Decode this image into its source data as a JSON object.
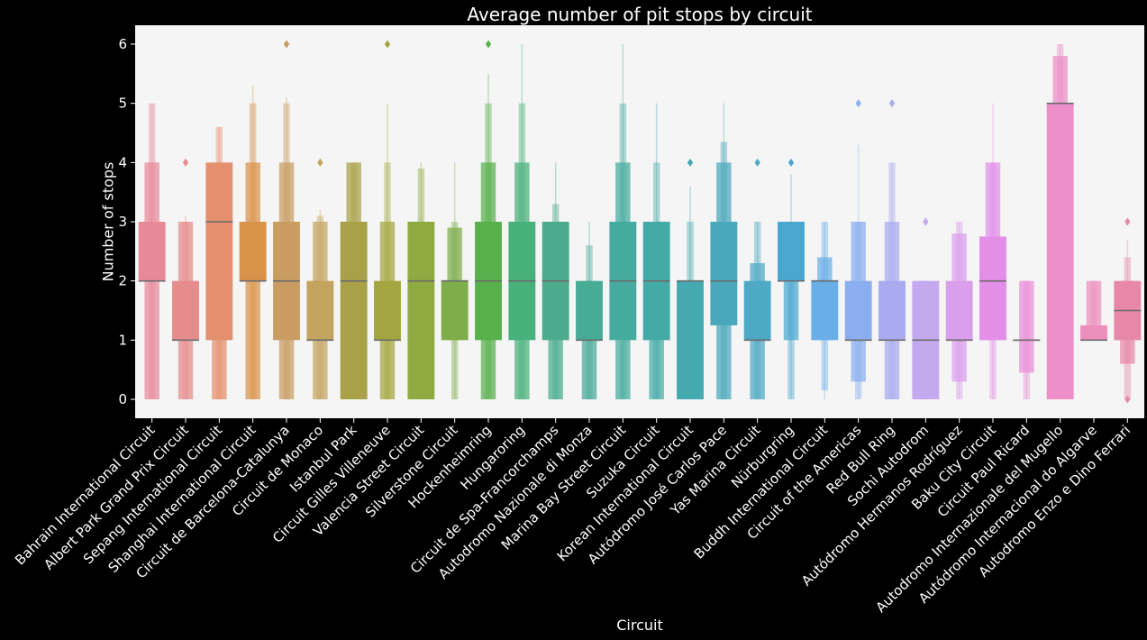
{
  "chart_data": {
    "type": "boxen",
    "title": "Average number of pit stops by circuit",
    "xlabel": "Circuit",
    "ylabel": "Number of stops",
    "ylim": [
      -0.32,
      6.32
    ],
    "yticks": [
      0,
      1,
      2,
      3,
      4,
      5,
      6
    ],
    "grid": false,
    "legend": "none",
    "background": "#f5f5f5",
    "figure_background": "#000000",
    "text_color": "#ffffff",
    "categories": [
      "Bahrain International Circuit",
      "Albert Park Grand Prix Circuit",
      "Sepang International Circuit",
      "Shanghai International Circuit",
      "Circuit de Barcelona-Catalunya",
      "Circuit de Monaco",
      "Istanbul Park",
      "Circuit Gilles Villeneuve",
      "Valencia Street Circuit",
      "Silverstone Circuit",
      "Hockenheimring",
      "Hungaroring",
      "Circuit de Spa-Francorchamps",
      "Autodromo Nazionale di Monza",
      "Marina Bay Street Circuit",
      "Suzuka Circuit",
      "Korean International Circuit",
      "Autódromo José Carlos Pace",
      "Yas Marina Circuit",
      "Nürburgring",
      "Buddh International Circuit",
      "Circuit of the Americas",
      "Red Bull Ring",
      "Sochi Autodrom",
      "Autódromo Hermanos Rodríguez",
      "Baku City Circuit",
      "Circuit Paul Ricard",
      "Autodromo Internazionale del Mugello",
      "Autódromo Internacional do Algarve",
      "Autodromo Enzo e Dino Ferrari"
    ],
    "colors": [
      "#e8899a",
      "#e68c8c",
      "#e4906e",
      "#d9924a",
      "#c99d62",
      "#c3a45f",
      "#a9a148",
      "#a3a63e",
      "#8faa41",
      "#7ead49",
      "#58b04c",
      "#48b07a",
      "#4aac8d",
      "#47ab95",
      "#46ab9f",
      "#44aaa6",
      "#45a9b0",
      "#4aa8bd",
      "#4da9c4",
      "#4aa7d0",
      "#6aaee8",
      "#8aaef0",
      "#a9aaf0",
      "#c3aaee",
      "#d99eec",
      "#e38fe8",
      "#e98fd8",
      "#ec8ec8",
      "#ed8fbb",
      "#e888a8"
    ],
    "medians": [
      2,
      1,
      3,
      2,
      2,
      1,
      2,
      1,
      2,
      2,
      2,
      2,
      2,
      1,
      2,
      2,
      2,
      2,
      1,
      2,
      2,
      1,
      1,
      1,
      1,
      2,
      1,
      5,
      1,
      1.5
    ],
    "boxes": [
      [
        [
          2,
          3
        ],
        [
          0,
          4
        ],
        [
          0,
          5
        ]
      ],
      [
        [
          1,
          2
        ],
        [
          0,
          3
        ],
        [
          0,
          3
        ]
      ],
      [
        [
          1,
          4
        ],
        [
          0,
          4
        ],
        [
          0,
          4.6
        ]
      ],
      [
        [
          2,
          3
        ],
        [
          0,
          4
        ],
        [
          0,
          5
        ]
      ],
      [
        [
          1,
          3
        ],
        [
          0,
          4
        ],
        [
          0,
          5
        ]
      ],
      [
        [
          1,
          2
        ],
        [
          0,
          3
        ],
        [
          0,
          3.1
        ]
      ],
      [
        [
          0,
          3
        ],
        [
          0,
          4
        ],
        [
          0,
          4
        ]
      ],
      [
        [
          1,
          2
        ],
        [
          0,
          3
        ],
        [
          0,
          4
        ]
      ],
      [
        [
          0,
          3
        ],
        [
          0,
          3
        ],
        [
          0,
          3.9
        ]
      ],
      [
        [
          1,
          2
        ],
        [
          1,
          2.9
        ],
        [
          0,
          3
        ]
      ],
      [
        [
          1,
          3
        ],
        [
          0,
          4
        ],
        [
          0,
          5
        ]
      ],
      [
        [
          1,
          3
        ],
        [
          0,
          4
        ],
        [
          0,
          5
        ]
      ],
      [
        [
          1,
          3
        ],
        [
          0,
          3
        ],
        [
          0,
          3.3
        ]
      ],
      [
        [
          1,
          2
        ],
        [
          0,
          2
        ],
        [
          0,
          2.6
        ]
      ],
      [
        [
          1,
          3
        ],
        [
          0,
          4
        ],
        [
          0,
          5
        ]
      ],
      [
        [
          1,
          3
        ],
        [
          0,
          3
        ],
        [
          0,
          4
        ]
      ],
      [
        [
          0,
          2
        ],
        [
          0,
          2
        ],
        [
          0,
          3
        ]
      ],
      [
        [
          1.25,
          3
        ],
        [
          0,
          4
        ],
        [
          0,
          4.35
        ]
      ],
      [
        [
          1,
          2
        ],
        [
          0,
          2.3
        ],
        [
          0,
          3
        ]
      ],
      [
        [
          2,
          3
        ],
        [
          1,
          3
        ],
        [
          0,
          3
        ]
      ],
      [
        [
          1,
          2
        ],
        [
          1,
          2.4
        ],
        [
          0.15,
          3
        ]
      ],
      [
        [
          1,
          2
        ],
        [
          0.3,
          3
        ],
        [
          0,
          3
        ]
      ],
      [
        [
          1,
          2
        ],
        [
          0,
          3
        ],
        [
          0,
          4
        ]
      ],
      [
        [
          0,
          2
        ],
        [
          0,
          2
        ],
        [
          0,
          2
        ]
      ],
      [
        [
          1,
          2
        ],
        [
          0.3,
          2.8
        ],
        [
          0,
          3
        ]
      ],
      [
        [
          1,
          2.75
        ],
        [
          1,
          4
        ],
        [
          0,
          4
        ]
      ],
      [
        [
          1,
          1
        ],
        [
          0.45,
          2
        ],
        [
          0,
          2
        ]
      ],
      [
        [
          0,
          5
        ],
        [
          0,
          5.8
        ],
        [
          0,
          6
        ]
      ],
      [
        [
          1,
          1.25
        ],
        [
          1,
          2
        ],
        [
          1,
          2
        ]
      ],
      [
        [
          1,
          2
        ],
        [
          0.6,
          2
        ],
        [
          0,
          2.4
        ]
      ]
    ],
    "whiskers": [
      [
        0,
        5
      ],
      [
        0,
        3.1
      ],
      [
        0,
        4.6
      ],
      [
        0,
        5.3
      ],
      [
        0,
        5.1
      ],
      [
        0,
        3.2
      ],
      [
        0,
        4
      ],
      [
        0,
        5
      ],
      [
        0,
        4
      ],
      [
        0,
        4
      ],
      [
        0,
        5.5
      ],
      [
        0,
        6
      ],
      [
        0,
        4
      ],
      [
        0,
        3
      ],
      [
        0,
        6
      ],
      [
        0,
        5
      ],
      [
        0,
        3.6
      ],
      [
        0,
        5
      ],
      [
        0,
        3
      ],
      [
        0,
        3.8
      ],
      [
        0,
        3
      ],
      [
        0,
        4.3
      ],
      [
        0,
        4
      ],
      [
        0,
        2
      ],
      [
        0,
        3
      ],
      [
        0,
        5
      ],
      [
        0,
        2
      ],
      [
        0,
        6
      ],
      [
        1,
        2
      ],
      [
        0.6,
        2.7
      ]
    ],
    "outliers": [
      [],
      [
        4
      ],
      [],
      [],
      [
        6
      ],
      [
        4
      ],
      [],
      [
        6
      ],
      [],
      [],
      [
        6
      ],
      [],
      [],
      [],
      [],
      [],
      [
        4
      ],
      [],
      [
        4
      ],
      [
        4
      ],
      [],
      [
        5
      ],
      [
        5
      ],
      [
        3
      ],
      [],
      [],
      [],
      [],
      [],
      [
        3,
        0
      ]
    ]
  }
}
